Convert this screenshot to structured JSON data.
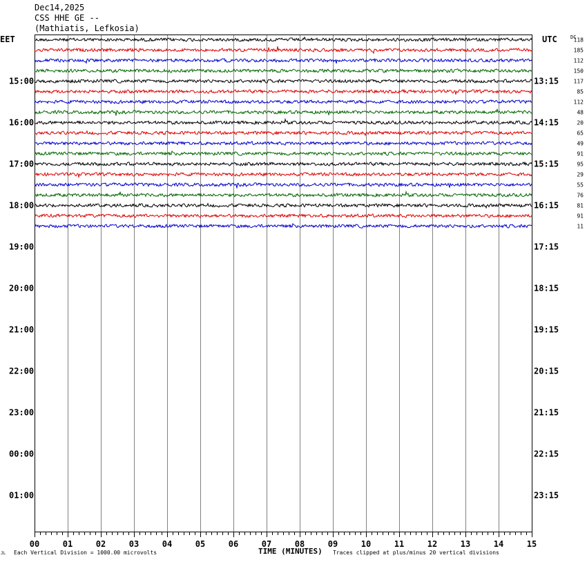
{
  "header": {
    "date": "Dec14,2025",
    "station": "CSS HHE GE --",
    "location": "(Mathiatis, Lefkosia)"
  },
  "left_zone_label": "EET",
  "right_zone_label": "UTC",
  "dc_label": "DC",
  "footer": {
    "division_note": "Each Vertical Division = 1000.00 microvolts",
    "x_axis_label": "TIME (MINUTES)",
    "clip_note": "Traces clipped at plus/minus 20 vertical divisions",
    "corner_mark": "JL"
  },
  "colors": {
    "trace_cycle": [
      "#000000",
      "#dd0000",
      "#0000cc",
      "#006600"
    ],
    "grid": "#808080",
    "frame": "#000000"
  },
  "chart_data": {
    "type": "line",
    "title": "Dec14,2025 CSS HHE GE -- (Mathiatis, Lefkosia)",
    "xlabel": "TIME (MINUTES)",
    "xlim": [
      0,
      15
    ],
    "x_ticks": [
      "00",
      "01",
      "02",
      "03",
      "04",
      "05",
      "06",
      "07",
      "08",
      "09",
      "10",
      "11",
      "12",
      "13",
      "14",
      "15"
    ],
    "rows_per_hour": 4,
    "left_hour_labels": [
      "15:00",
      "16:00",
      "17:00",
      "18:00",
      "19:00",
      "20:00",
      "21:00",
      "22:00",
      "23:00",
      "00:00",
      "01:00"
    ],
    "right_hour_labels": [
      "13:15",
      "14:15",
      "15:15",
      "16:15",
      "17:15",
      "18:15",
      "19:15",
      "20:15",
      "21:15",
      "22:15",
      "23:15"
    ],
    "dc_offsets": [
      118,
      185,
      112,
      150,
      117,
      85,
      112,
      48,
      20,
      65,
      49,
      91,
      95,
      29,
      55,
      76,
      81,
      91,
      11
    ],
    "total_rows": 47,
    "recorded_rows": 19,
    "grid": true
  }
}
